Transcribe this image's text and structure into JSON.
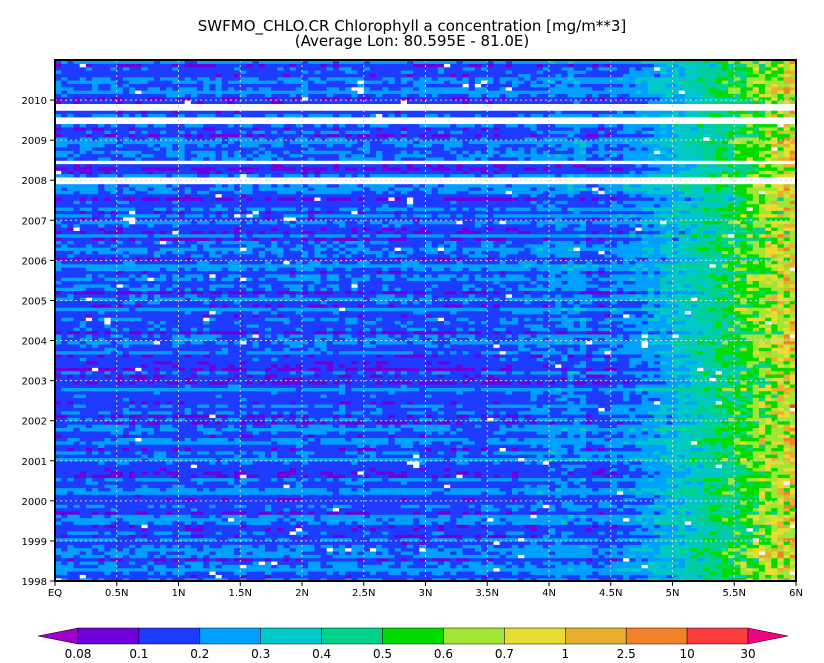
{
  "chart_data": {
    "type": "heatmap",
    "title": "SWFMO_CHLO.CR Chlorophyll a concentration [mg/m**3]",
    "subtitle": "(Average Lon: 80.595E - 81.0E)",
    "xlabel": "",
    "ylabel": "",
    "x_range": [
      "EQ",
      "6N"
    ],
    "x_ticks": [
      "EQ",
      "0.5N",
      "1N",
      "1.5N",
      "2N",
      "2.5N",
      "3N",
      "3.5N",
      "4N",
      "4.5N",
      "5N",
      "5.5N",
      "6N"
    ],
    "y_range": [
      1998,
      2011
    ],
    "y_ticks": [
      "1998",
      "1999",
      "2000",
      "2001",
      "2002",
      "2003",
      "2004",
      "2005",
      "2006",
      "2007",
      "2008",
      "2009",
      "2010"
    ],
    "grid": true,
    "colorbar": {
      "levels": [
        "0.08",
        "0.1",
        "0.2",
        "0.3",
        "0.4",
        "0.5",
        "0.6",
        "0.7",
        "1",
        "2.5",
        "10",
        "30"
      ],
      "colors": [
        "#a000c8",
        "#6e00dc",
        "#1e3cff",
        "#00a0ff",
        "#00c8c8",
        "#00d28c",
        "#00dc00",
        "#a0e632",
        "#e6dc32",
        "#e6af2d",
        "#f08228",
        "#fa3c3c",
        "#f00082"
      ]
    },
    "pattern": "Low concentrations (0.08–0.3) dominate EQ to ~4N; values increase toward 6N reaching 2.5–10 near the coast; white bands indicate missing data (e.g., around 2008 and 2009–2010)"
  }
}
